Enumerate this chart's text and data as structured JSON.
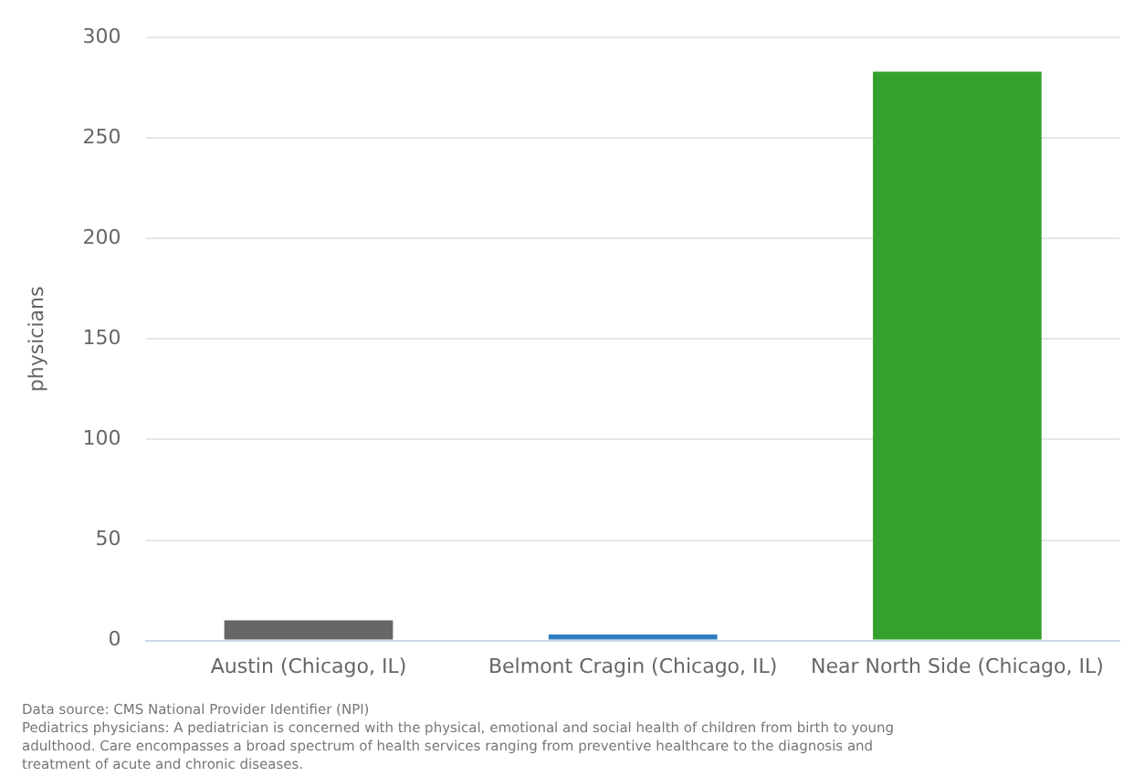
{
  "chart_data": {
    "type": "bar",
    "ylabel": "physicians",
    "categories": [
      "Austin (Chicago, IL)",
      "Belmont Cragin (Chicago, IL)",
      "Near North Side (Chicago, IL)"
    ],
    "values": [
      10,
      3,
      283
    ],
    "colors": [
      "#666666",
      "#2f7ec1",
      "#34a12f"
    ],
    "ylim": [
      0,
      300
    ],
    "yticks": [
      0,
      50,
      100,
      150,
      200,
      250,
      300
    ],
    "grid": "y",
    "legend": false,
    "annotations": [
      "Data source: CMS National Provider Identifier (NPI)",
      "Pediatrics physicians: A pediatrician is concerned with the physical, emotional and social health of children from birth to young adulthood. Care encompasses a broad spectrum of health services ranging from preventive healthcare to the diagnosis and treatment of acute and chronic diseases."
    ]
  }
}
